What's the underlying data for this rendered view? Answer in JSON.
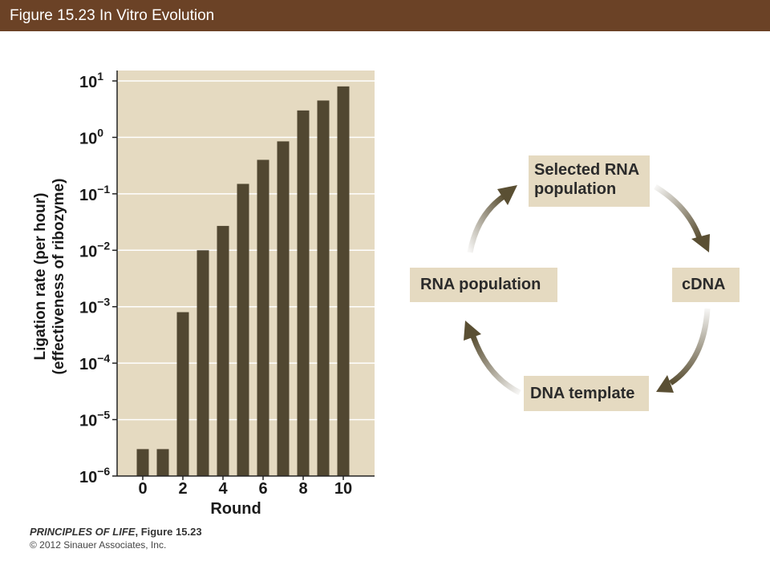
{
  "header": {
    "title": "Figure 15.23  In Vitro Evolution"
  },
  "chart_data": {
    "type": "bar",
    "scale": "log",
    "x": [
      0,
      1,
      2,
      3,
      4,
      5,
      6,
      7,
      8,
      9,
      10
    ],
    "values": [
      3e-06,
      3e-06,
      0.0008,
      0.01,
      0.027,
      0.15,
      0.4,
      0.85,
      3,
      4.5,
      8
    ],
    "xticks": [
      "0",
      "2",
      "4",
      "6",
      "8",
      "10"
    ],
    "xtick_values": [
      0,
      2,
      4,
      6,
      8,
      10
    ],
    "yticks": [
      {
        "base": "10",
        "exp": "1"
      },
      {
        "base": "10",
        "exp": "0"
      },
      {
        "base": "10",
        "exp": "−1"
      },
      {
        "base": "10",
        "exp": "−2"
      },
      {
        "base": "10",
        "exp": "−3"
      },
      {
        "base": "10",
        "exp": "−4"
      },
      {
        "base": "10",
        "exp": "−5"
      },
      {
        "base": "10",
        "exp": "−6"
      }
    ],
    "ylim_exponents": [
      -6,
      1
    ],
    "xlabel": "Round",
    "ylabel_line1": "Ligation rate (per hour)",
    "ylabel_line2": "(effectiveness of ribozyme)",
    "grid": true,
    "colors": {
      "bar": "#514731",
      "background": "#e5dac1",
      "grid": "#ffffff"
    }
  },
  "cycle": {
    "selected_line1": "Selected RNA",
    "selected_line2": "population",
    "cdna": "cDNA",
    "dna_template": "DNA template",
    "rna_population": "RNA population",
    "arrow_color": "#5a4f33"
  },
  "footer": {
    "book": "PRINCIPLES OF LIFE",
    "figure": ", Figure 15.23",
    "copyright": "© 2012 Sinauer Associates, Inc."
  }
}
